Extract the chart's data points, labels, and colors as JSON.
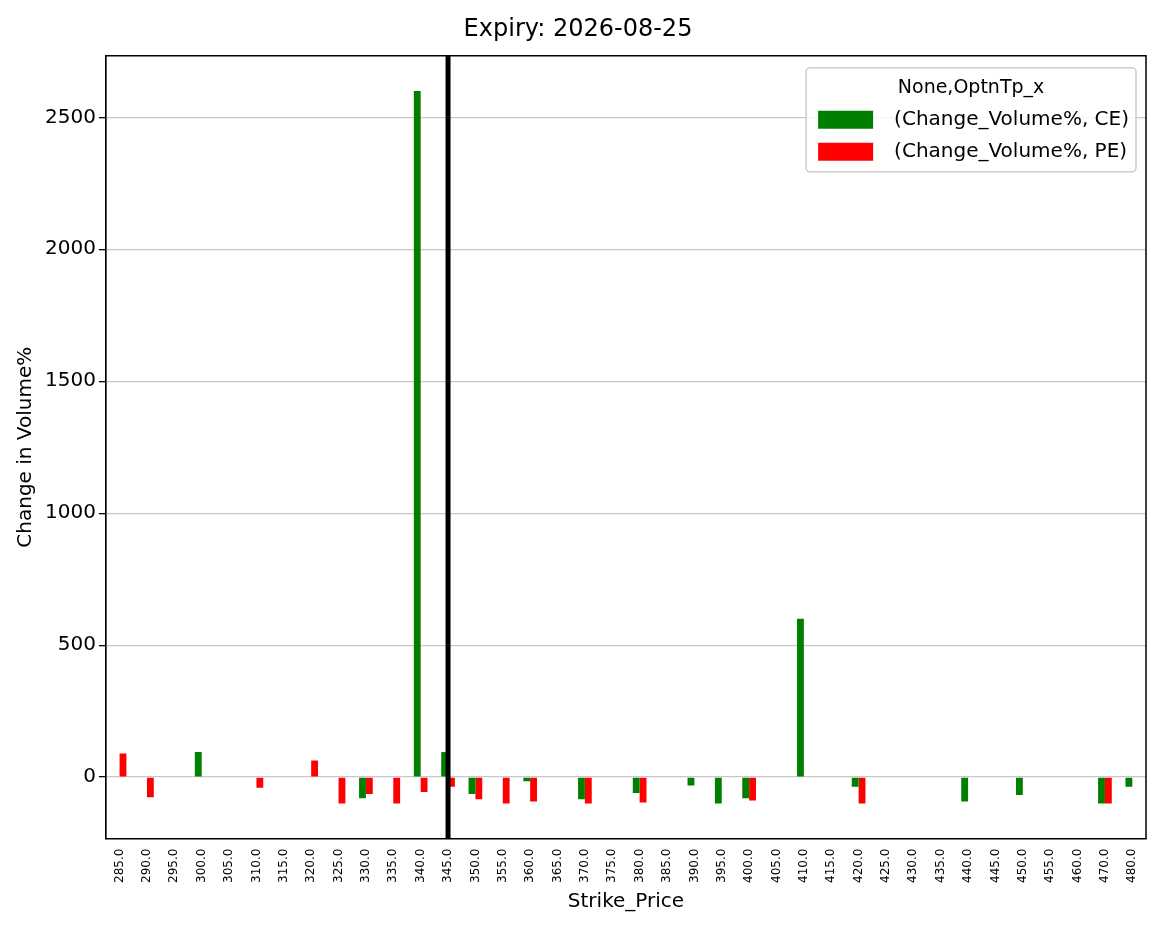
{
  "chart_data": {
    "type": "bar",
    "title": "Expiry: 2026-08-25",
    "xlabel": "Strike_Price",
    "ylabel": "Change in Volume%",
    "legend_title": "None,OptnTp_x",
    "categories": [
      "285.0",
      "290.0",
      "295.0",
      "300.0",
      "305.0",
      "310.0",
      "315.0",
      "320.0",
      "325.0",
      "330.0",
      "335.0",
      "340.0",
      "345.0",
      "350.0",
      "355.0",
      "360.0",
      "365.0",
      "370.0",
      "375.0",
      "380.0",
      "385.0",
      "390.0",
      "395.0",
      "400.0",
      "405.0",
      "410.0",
      "415.0",
      "420.0",
      "425.0",
      "430.0",
      "435.0",
      "440.0",
      "445.0",
      "450.0",
      "455.0",
      "460.0",
      "470.0",
      "480.0"
    ],
    "series": [
      {
        "name": "(Change_Volume%, CE)",
        "color": "#008000",
        "values": [
          null,
          null,
          null,
          95,
          null,
          null,
          null,
          null,
          null,
          -80,
          null,
          2600,
          95,
          -64,
          null,
          -16,
          null,
          -84,
          null,
          -60,
          null,
          -32,
          -100,
          -80,
          null,
          600,
          null,
          -36,
          null,
          null,
          null,
          -92,
          null,
          -68,
          null,
          null,
          -100,
          -36
        ]
      },
      {
        "name": "(Change_Volume%, PE)",
        "color": "#ff0000",
        "values": [
          90,
          -76,
          null,
          null,
          null,
          -40,
          null,
          63,
          -100,
          -64,
          -100,
          -56,
          -36,
          -84,
          -100,
          -92,
          null,
          -100,
          null,
          -96,
          null,
          null,
          null,
          -88,
          null,
          null,
          null,
          -100,
          null,
          null,
          null,
          null,
          null,
          null,
          null,
          null,
          -100,
          null
        ]
      }
    ],
    "ylim": [
      -233,
      2733
    ],
    "yticks": [
      0,
      500,
      1000,
      1500,
      2000,
      2500
    ],
    "grid": "y",
    "legend": "top right",
    "ref_lines": [
      {
        "axis": "x",
        "value": "345.0",
        "color": "#000000"
      }
    ]
  }
}
